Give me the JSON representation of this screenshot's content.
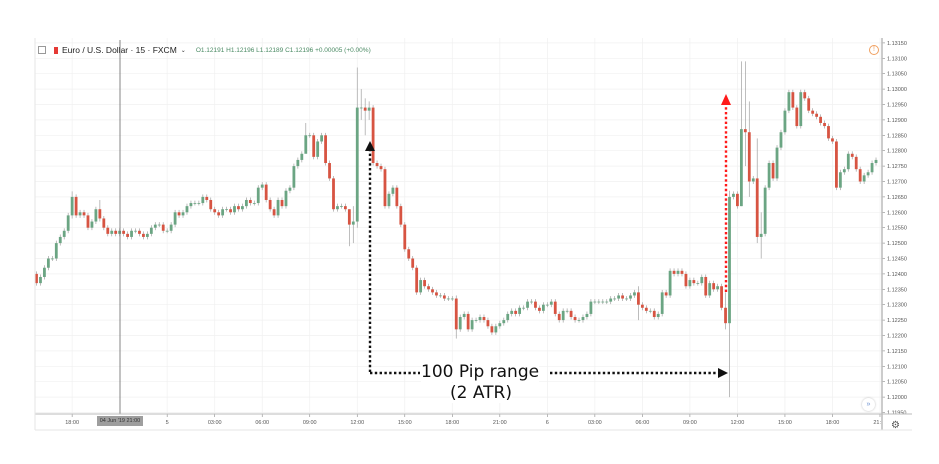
{
  "legend": {
    "symbol": "Euro / U.S. Dollar · 15 · FXCM",
    "ohlc": "O1.12191  H1.12196  L1.12189  C1.12196  +0.00005 (+0.00%)"
  },
  "crosshair_label": "04 Jun '19   21:00",
  "icons": {
    "warning": "!",
    "settings": "⚙",
    "scroll": "»"
  },
  "colors": {
    "up": "#6ba583",
    "down": "#d75442",
    "wick": "#a0a0a0",
    "grid": "#f0f0f0",
    "annotation_black": "#111111",
    "annotation_red": "#ff1a1a"
  },
  "annotations": {
    "line1": "100 Pip range",
    "line2": "(2 ATR)"
  },
  "chart_data": {
    "type": "candlestick",
    "title": "Euro / U.S. Dollar · 15 · FXCM",
    "interval_minutes": 15,
    "ylim": [
      1.1195,
      1.1315
    ],
    "y_ticks": [
      "1.13150",
      "1.13100",
      "1.13050",
      "1.13000",
      "1.12950",
      "1.12900",
      "1.12850",
      "1.12800",
      "1.12750",
      "1.12700",
      "1.12650",
      "1.12600",
      "1.12550",
      "1.12500",
      "1.12450",
      "1.12400",
      "1.12350",
      "1.12300",
      "1.12250",
      "1.12200",
      "1.12150",
      "1.12100",
      "1.12050",
      "1.12000",
      "1.11950"
    ],
    "x_ticks": [
      "18:00",
      "5",
      "03:00",
      "06:00",
      "09:00",
      "12:00",
      "15:00",
      "18:00",
      "21:00",
      "6",
      "03:00",
      "06:00",
      "09:00",
      "12:00",
      "15:00",
      "18:00",
      "21:"
    ],
    "grid": true,
    "first_open": 1.124,
    "closes": [
      1.1237,
      1.1239,
      1.1242,
      1.1245,
      1.1245,
      1.125,
      1.1252,
      1.1254,
      1.1259,
      1.1265,
      1.1259,
      1.126,
      1.1259,
      1.1255,
      1.1257,
      1.1261,
      1.1258,
      1.1255,
      1.1253,
      1.1254,
      1.1253,
      1.1254,
      1.1253,
      1.1252,
      1.1254,
      1.1254,
      1.1253,
      1.1252,
      1.1253,
      1.1255,
      1.1256,
      1.1256,
      1.1254,
      1.1254,
      1.1256,
      1.126,
      1.1259,
      1.126,
      1.1262,
      1.1263,
      1.1263,
      1.1263,
      1.1265,
      1.1264,
      1.1261,
      1.126,
      1.1259,
      1.1261,
      1.1261,
      1.126,
      1.1262,
      1.1261,
      1.1262,
      1.1264,
      1.1263,
      1.1263,
      1.1268,
      1.1269,
      1.1264,
      1.1261,
      1.1259,
      1.1264,
      1.1262,
      1.1267,
      1.1268,
      1.1275,
      1.1277,
      1.1279,
      1.1285,
      1.1285,
      1.1278,
      1.1283,
      1.1285,
      1.1276,
      1.1271,
      1.1261,
      1.1262,
      1.1262,
      1.1261,
      1.1256,
      1.1257,
      1.1294,
      1.1294,
      1.1293,
      1.1294,
      1.1276,
      1.1275,
      1.1274,
      1.1262,
      1.1266,
      1.1268,
      1.1262,
      1.1256,
      1.1248,
      1.1245,
      1.1242,
      1.1234,
      1.1238,
      1.1236,
      1.1235,
      1.1234,
      1.1233,
      1.1233,
      1.1232,
      1.1232,
      1.1232,
      1.1222,
      1.1226,
      1.1227,
      1.1222,
      1.1225,
      1.1225,
      1.1226,
      1.1225,
      1.1223,
      1.1221,
      1.1223,
      1.1224,
      1.1225,
      1.1227,
      1.1228,
      1.1227,
      1.1229,
      1.1229,
      1.1231,
      1.1231,
      1.1229,
      1.1228,
      1.123,
      1.123,
      1.1231,
      1.1227,
      1.1225,
      1.1228,
      1.1228,
      1.1226,
      1.1225,
      1.1225,
      1.1226,
      1.1227,
      1.1231,
      1.1231,
      1.1231,
      1.1231,
      1.1231,
      1.1232,
      1.1232,
      1.1233,
      1.1232,
      1.1232,
      1.1233,
      1.1234,
      1.123,
      1.1229,
      1.1228,
      1.1228,
      1.1226,
      1.1227,
      1.1234,
      1.1233,
      1.1241,
      1.124,
      1.1241,
      1.124,
      1.1236,
      1.1238,
      1.1237,
      1.1237,
      1.1239,
      1.1233,
      1.1237,
      1.1235,
      1.1236,
      1.1229,
      1.1224,
      1.1265,
      1.1266,
      1.1262,
      1.1287,
      1.1286,
      1.127,
      1.1271,
      1.1252,
      1.1253,
      1.1268,
      1.1276,
      1.1271,
      1.1281,
      1.1286,
      1.1293,
      1.1299,
      1.1294,
      1.1288,
      1.1299,
      1.1297,
      1.1293,
      1.1292,
      1.1291,
      1.1289,
      1.1288,
      1.1284,
      1.1283,
      1.1268,
      1.1273,
      1.1274,
      1.1279,
      1.1278,
      1.1274,
      1.127,
      1.1272,
      1.1273,
      1.1276,
      1.1277
    ],
    "wicks": {
      "9": [
        1.12668,
        1.1258
      ],
      "16": [
        1.1264,
        1.1257
      ],
      "68": [
        1.1289,
        1.128
      ],
      "79": [
        1.1261,
        1.1249
      ],
      "80": [
        1.1262,
        1.125
      ],
      "81": [
        1.1307,
        1.1255
      ],
      "82": [
        1.13,
        1.129
      ],
      "83": [
        1.1297,
        1.1285
      ],
      "84": [
        1.1296,
        1.129
      ],
      "106": [
        1.1233,
        1.1219
      ],
      "152": [
        1.1236,
        1.1225
      ],
      "174": [
        1.1234,
        1.1222
      ],
      "175": [
        1.1267,
        1.12
      ],
      "178": [
        1.1309,
        1.1262
      ],
      "179": [
        1.1309,
        1.1275
      ],
      "180": [
        1.1296,
        1.1265
      ],
      "182": [
        1.1284,
        1.125
      ],
      "183": [
        1.126,
        1.1245
      ]
    }
  }
}
